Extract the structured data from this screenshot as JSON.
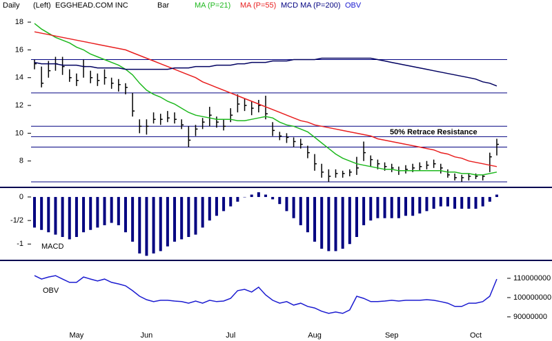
{
  "chart_data": [
    {
      "type": "ohlc",
      "period": "Daily",
      "axis_side": "(Left)",
      "title": "EGGHEAD.COM INC",
      "annotation": "50% Retrace Resistance",
      "ylim": [
        6.2,
        18.6
      ],
      "yticks": [
        8,
        10,
        12,
        14,
        16,
        18
      ],
      "hlines": [
        15.3,
        12.9,
        10.5,
        9.75,
        9.0,
        6.5
      ],
      "hline_color": "#000080",
      "series": [
        {
          "name": "Bar",
          "color": "#000000",
          "high": [
            15.3,
            14.8,
            15.2,
            15.5,
            15.5,
            14.6,
            14.3,
            15.3,
            14.5,
            14.3,
            14.6,
            14.0,
            13.9,
            13.6,
            12.9,
            11.0,
            11.0,
            11.5,
            11.4,
            11.6,
            11.5,
            11.0,
            10.5,
            10.6,
            11.1,
            11.9,
            11.2,
            11.0,
            11.8,
            12.8,
            12.5,
            12.3,
            12.4,
            12.7,
            10.8,
            10.1,
            10.0,
            9.7,
            9.6,
            9.1,
            8.5,
            7.8,
            7.4,
            7.4,
            7.3,
            7.4,
            8.3,
            9.4,
            8.4,
            8.1,
            7.9,
            7.8,
            7.6,
            7.7,
            7.8,
            7.9,
            8.0,
            8.1,
            7.8,
            7.4,
            7.1,
            7.0,
            7.1,
            7.1,
            7.0,
            8.6,
            9.6
          ],
          "low": [
            14.6,
            13.3,
            14.0,
            14.5,
            14.2,
            13.7,
            13.4,
            14.0,
            13.6,
            13.4,
            13.5,
            13.2,
            13.0,
            12.8,
            11.2,
            10.0,
            9.9,
            10.7,
            10.6,
            10.8,
            10.7,
            10.3,
            9.0,
            9.8,
            10.3,
            10.5,
            10.4,
            10.2,
            10.8,
            11.5,
            11.6,
            11.3,
            11.5,
            11.0,
            9.8,
            9.5,
            9.3,
            9.0,
            8.9,
            8.2,
            7.3,
            6.8,
            6.5,
            6.8,
            6.8,
            6.9,
            7.0,
            8.0,
            7.6,
            7.4,
            7.3,
            7.2,
            7.0,
            7.1,
            7.2,
            7.3,
            7.4,
            7.5,
            7.1,
            6.8,
            6.6,
            6.5,
            6.6,
            6.7,
            6.6,
            7.2,
            8.4
          ],
          "close": [
            15.0,
            13.6,
            14.5,
            15.0,
            14.8,
            14.0,
            13.8,
            14.8,
            14.0,
            13.8,
            14.0,
            13.6,
            13.5,
            13.3,
            11.6,
            10.5,
            10.5,
            11.0,
            11.0,
            11.1,
            11.0,
            10.6,
            9.5,
            10.3,
            10.8,
            11.3,
            10.8,
            10.5,
            11.3,
            12.1,
            12.0,
            11.8,
            12.0,
            11.4,
            10.2,
            9.8,
            9.7,
            9.4,
            9.2,
            8.6,
            7.8,
            7.2,
            6.9,
            7.1,
            7.1,
            7.2,
            7.5,
            8.6,
            8.1,
            7.8,
            7.6,
            7.5,
            7.3,
            7.4,
            7.5,
            7.6,
            7.7,
            7.8,
            7.5,
            7.0,
            6.8,
            6.8,
            6.9,
            6.9,
            6.9,
            8.3,
            9.2
          ]
        },
        {
          "name": "MA (P=21)",
          "color": "#1db81d",
          "values": [
            17.9,
            17.5,
            17.2,
            16.9,
            16.7,
            16.5,
            16.2,
            16.0,
            15.7,
            15.5,
            15.3,
            15.1,
            14.9,
            14.6,
            14.2,
            13.6,
            13.1,
            12.8,
            12.6,
            12.3,
            12.1,
            11.8,
            11.5,
            11.3,
            11.2,
            11.1,
            11.0,
            11.0,
            11.0,
            10.9,
            10.9,
            11.0,
            11.1,
            11.2,
            11.1,
            10.8,
            10.6,
            10.5,
            10.3,
            10.1,
            9.7,
            9.3,
            8.9,
            8.5,
            8.2,
            8.0,
            7.8,
            7.7,
            7.6,
            7.5,
            7.4,
            7.4,
            7.3,
            7.3,
            7.3,
            7.3,
            7.3,
            7.3,
            7.3,
            7.2,
            7.2,
            7.1,
            7.1,
            7.0,
            7.0,
            7.1,
            7.2
          ]
        },
        {
          "name": "MA (P=55)",
          "color": "#e81e1e",
          "values": [
            17.3,
            17.2,
            17.1,
            17.0,
            16.9,
            16.8,
            16.7,
            16.6,
            16.5,
            16.4,
            16.3,
            16.2,
            16.1,
            16.0,
            15.8,
            15.6,
            15.4,
            15.2,
            15.0,
            14.8,
            14.6,
            14.4,
            14.2,
            14.0,
            13.7,
            13.5,
            13.3,
            13.1,
            12.9,
            12.7,
            12.5,
            12.3,
            12.1,
            11.9,
            11.7,
            11.5,
            11.3,
            11.1,
            10.9,
            10.8,
            10.6,
            10.5,
            10.4,
            10.3,
            10.2,
            10.1,
            10.0,
            9.9,
            9.8,
            9.6,
            9.5,
            9.4,
            9.3,
            9.2,
            9.1,
            9.0,
            8.9,
            8.8,
            8.6,
            8.5,
            8.3,
            8.2,
            8.0,
            7.9,
            7.8,
            7.7,
            7.6
          ]
        },
        {
          "name": "MCD MA (P=200)",
          "color": "#000060",
          "values": [
            15.1,
            15.0,
            15.0,
            15.0,
            14.9,
            14.9,
            14.9,
            14.8,
            14.8,
            14.7,
            14.7,
            14.7,
            14.7,
            14.6,
            14.6,
            14.6,
            14.6,
            14.6,
            14.6,
            14.6,
            14.7,
            14.7,
            14.7,
            14.8,
            14.8,
            14.8,
            14.9,
            14.9,
            14.9,
            15.0,
            15.0,
            15.1,
            15.1,
            15.1,
            15.2,
            15.2,
            15.2,
            15.3,
            15.3,
            15.3,
            15.3,
            15.4,
            15.4,
            15.4,
            15.4,
            15.4,
            15.4,
            15.4,
            15.4,
            15.3,
            15.2,
            15.1,
            15.0,
            14.9,
            14.8,
            14.7,
            14.6,
            14.5,
            14.4,
            14.3,
            14.2,
            14.1,
            14.0,
            13.9,
            13.7,
            13.6,
            13.4
          ]
        }
      ]
    },
    {
      "type": "bar",
      "label": "MACD",
      "color": "#000080",
      "ylim": [
        -1.26,
        0.16
      ],
      "yticks": [
        0,
        {
          "value": -0.5,
          "label": "-1/2"
        },
        -1
      ],
      "values": [
        -0.65,
        -0.7,
        -0.75,
        -0.8,
        -0.85,
        -0.9,
        -0.85,
        -0.75,
        -0.7,
        -0.65,
        -0.6,
        -0.55,
        -0.6,
        -0.75,
        -0.95,
        -1.2,
        -1.25,
        -1.2,
        -1.15,
        -1.05,
        -0.95,
        -0.9,
        -0.85,
        -0.8,
        -0.65,
        -0.5,
        -0.4,
        -0.3,
        -0.2,
        -0.1,
        0.0,
        0.05,
        0.1,
        0.05,
        -0.05,
        -0.15,
        -0.3,
        -0.45,
        -0.6,
        -0.75,
        -0.95,
        -1.1,
        -1.15,
        -1.15,
        -1.1,
        -1.0,
        -0.85,
        -0.6,
        -0.5,
        -0.45,
        -0.45,
        -0.45,
        -0.45,
        -0.4,
        -0.4,
        -0.35,
        -0.3,
        -0.25,
        -0.2,
        -0.2,
        -0.25,
        -0.25,
        -0.25,
        -0.25,
        -0.2,
        -0.1,
        0.05
      ]
    },
    {
      "type": "line",
      "categories": [
        null,
        null,
        null,
        null,
        null,
        null,
        "May",
        null,
        null,
        null,
        null,
        null,
        null,
        null,
        null,
        null,
        "Jun",
        null,
        null,
        null,
        null,
        null,
        null,
        null,
        null,
        null,
        null,
        null,
        "Jul",
        null,
        null,
        null,
        null,
        null,
        null,
        null,
        null,
        null,
        null,
        null,
        "Aug",
        null,
        null,
        null,
        null,
        null,
        null,
        null,
        null,
        null,
        null,
        "Sep",
        null,
        null,
        null,
        null,
        null,
        null,
        null,
        null,
        null,
        null,
        null,
        "Oct",
        null,
        null,
        null
      ],
      "ylim": [
        86400000,
        116800000
      ],
      "yticks": [
        90000000,
        100000000,
        110000000
      ],
      "series": [
        {
          "name": "OBV",
          "color": "#1a1ad0",
          "values": [
            111400000,
            109600000,
            110700000,
            111400000,
            109600000,
            107900000,
            107900000,
            110700000,
            109600000,
            108600000,
            109600000,
            107900000,
            107100000,
            106100000,
            103600000,
            100700000,
            98900000,
            97900000,
            98600000,
            98600000,
            98200000,
            97900000,
            97100000,
            98200000,
            97100000,
            98600000,
            97900000,
            98200000,
            99600000,
            103600000,
            104300000,
            102900000,
            105400000,
            101400000,
            98600000,
            97100000,
            97900000,
            96100000,
            97100000,
            95400000,
            94600000,
            92900000,
            91800000,
            92500000,
            91800000,
            93600000,
            100700000,
            99600000,
            97900000,
            97900000,
            98200000,
            98600000,
            98200000,
            98600000,
            98600000,
            98600000,
            98900000,
            98600000,
            97900000,
            97100000,
            95400000,
            95400000,
            97100000,
            97100000,
            97900000,
            100700000,
            109600000
          ]
        }
      ]
    }
  ]
}
